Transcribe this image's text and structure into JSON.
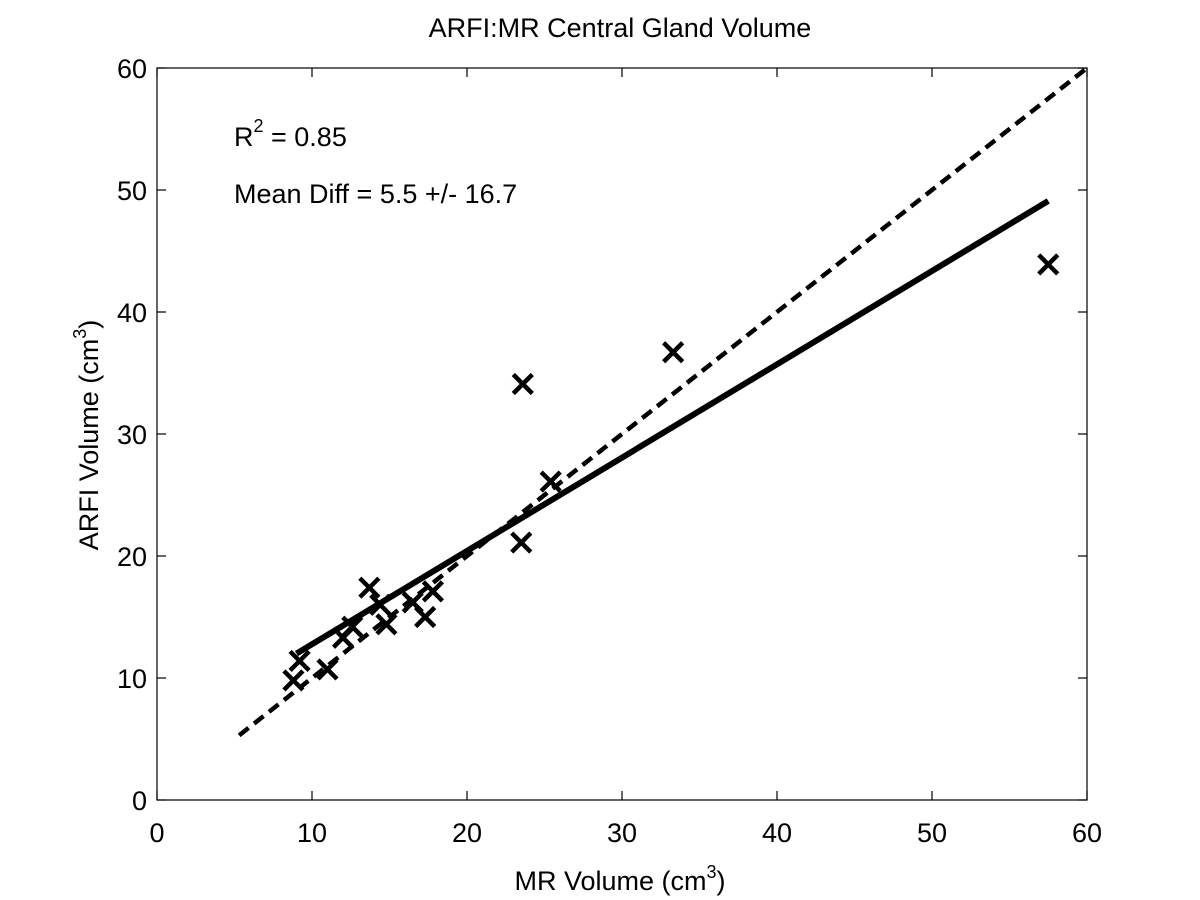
{
  "chart_data": {
    "type": "scatter",
    "title": "ARFI:MR Central Gland Volume",
    "xlabel": {
      "text": "MR Volume (cm",
      "sup": "3",
      "suffix": ")"
    },
    "ylabel": {
      "text": "ARFI Volume (cm",
      "sup": "3",
      "suffix": ")"
    },
    "xlim": [
      0,
      60
    ],
    "ylim": [
      0,
      60
    ],
    "xticks": [
      0,
      10,
      20,
      30,
      40,
      50,
      60
    ],
    "yticks": [
      0,
      10,
      20,
      30,
      40,
      50,
      60
    ],
    "grid": false,
    "annotations": {
      "r2": {
        "text": "R",
        "sup": "2",
        "suffix": " = 0.85"
      },
      "mean_diff": "Mean Diff = 5.5 +/- 16.7"
    },
    "points": [
      {
        "x": 8.8,
        "y": 9.8
      },
      {
        "x": 9.2,
        "y": 11.4
      },
      {
        "x": 11.0,
        "y": 10.7
      },
      {
        "x": 12.0,
        "y": 13.3
      },
      {
        "x": 12.6,
        "y": 14.2
      },
      {
        "x": 13.7,
        "y": 17.4
      },
      {
        "x": 14.4,
        "y": 16.0
      },
      {
        "x": 14.8,
        "y": 14.4
      },
      {
        "x": 16.5,
        "y": 16.2
      },
      {
        "x": 17.3,
        "y": 15.0
      },
      {
        "x": 17.8,
        "y": 17.1
      },
      {
        "x": 23.5,
        "y": 21.1
      },
      {
        "x": 23.6,
        "y": 34.1
      },
      {
        "x": 25.4,
        "y": 26.1
      },
      {
        "x": 33.3,
        "y": 36.7
      },
      {
        "x": 57.5,
        "y": 43.9
      }
    ],
    "lines": [
      {
        "style": "solid",
        "x": [
          9.0,
          57.5
        ],
        "y": [
          12.0,
          49.1
        ]
      },
      {
        "style": "dashed",
        "x": [
          5.3,
          60
        ],
        "y": [
          5.3,
          60
        ]
      }
    ]
  }
}
